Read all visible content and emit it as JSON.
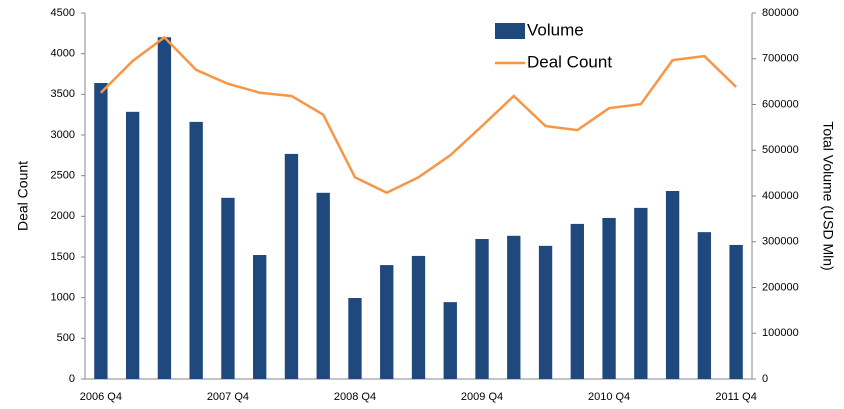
{
  "chart_data": {
    "type": "bar-line",
    "categories": [
      "2006 Q4",
      null,
      null,
      null,
      "2007 Q4",
      null,
      null,
      null,
      "2008 Q4",
      null,
      null,
      null,
      "2009 Q4",
      null,
      null,
      null,
      "2010 Q4",
      null,
      null,
      null,
      "2011 Q4"
    ],
    "series": [
      {
        "name": "Volume",
        "type": "bar",
        "axis": "y2",
        "color": "#1f497d",
        "values": [
          647000,
          584000,
          747000,
          562000,
          396000,
          271000,
          492000,
          407000,
          177000,
          249000,
          269000,
          168000,
          306000,
          313000,
          291000,
          339000,
          352000,
          374000,
          411000,
          321000,
          293000
        ]
      },
      {
        "name": "Deal Count",
        "type": "line",
        "axis": "y",
        "color": "#f79646",
        "values": [
          3520,
          3910,
          4200,
          3800,
          3630,
          3520,
          3480,
          3250,
          2480,
          2290,
          2480,
          2750,
          3110,
          3480,
          3110,
          3060,
          3330,
          3380,
          3920,
          3970,
          3590
        ]
      }
    ],
    "ylabel": "Deal Count",
    "y2label": "Total Volume (USD Mln)",
    "ylim": [
      0,
      4500
    ],
    "yticks": [
      0,
      500,
      1000,
      1500,
      2000,
      2500,
      3000,
      3500,
      4000,
      4500
    ],
    "y2lim": [
      0,
      800000
    ],
    "y2ticks": [
      0,
      100000,
      200000,
      300000,
      400000,
      500000,
      600000,
      700000,
      800000
    ],
    "legend": "top-right"
  }
}
